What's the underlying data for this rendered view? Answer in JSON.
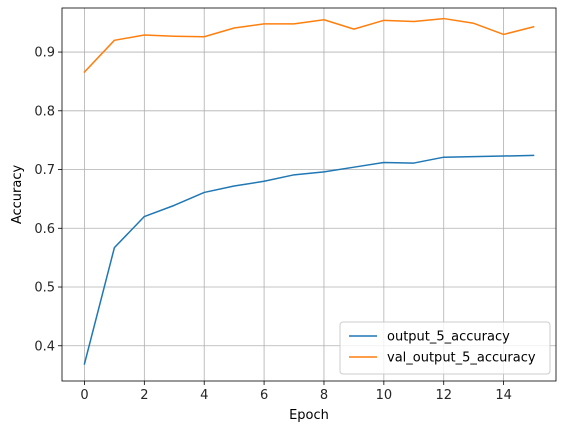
{
  "chart_data": {
    "type": "line",
    "title": "",
    "xlabel": "Epoch",
    "ylabel": "Accuracy",
    "xlim": [
      -0.75,
      15.75
    ],
    "ylim": [
      0.34,
      0.975
    ],
    "xticks": [
      0,
      2,
      4,
      6,
      8,
      10,
      12,
      14
    ],
    "yticks": [
      0.4,
      0.5,
      0.6,
      0.7,
      0.8,
      0.9
    ],
    "grid": true,
    "legend_position": "lower-right",
    "x": [
      0,
      1,
      2,
      3,
      4,
      5,
      6,
      7,
      8,
      9,
      10,
      11,
      12,
      13,
      14,
      15
    ],
    "series": [
      {
        "name": "output_5_accuracy",
        "color": "#1f77b4",
        "values": [
          0.369,
          0.567,
          0.62,
          0.639,
          0.661,
          0.672,
          0.68,
          0.691,
          0.696,
          0.704,
          0.712,
          0.711,
          0.721,
          0.722,
          0.723,
          0.724
        ]
      },
      {
        "name": "val_output_5_accuracy",
        "color": "#ff7f0e",
        "values": [
          0.866,
          0.92,
          0.929,
          0.927,
          0.926,
          0.941,
          0.948,
          0.948,
          0.955,
          0.939,
          0.954,
          0.952,
          0.957,
          0.949,
          0.93,
          0.943
        ]
      }
    ]
  }
}
